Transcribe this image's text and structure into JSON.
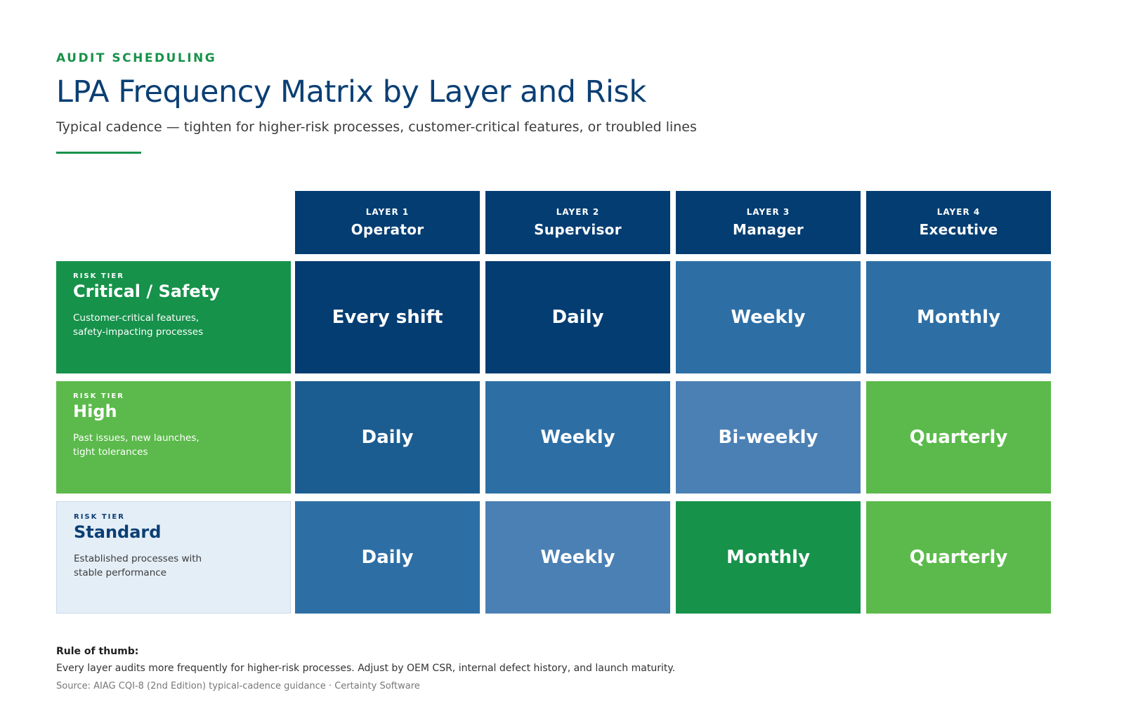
{
  "header": {
    "eyebrow": "AUDIT SCHEDULING",
    "title": "LPA Frequency Matrix by Layer and Risk",
    "subtitle": "Typical cadence — tighten for higher-risk processes, customer-critical features, or troubled lines"
  },
  "columns": [
    {
      "layer": "LAYER 1",
      "role": "Operator"
    },
    {
      "layer": "LAYER 2",
      "role": "Supervisor"
    },
    {
      "layer": "LAYER 3",
      "role": "Manager"
    },
    {
      "layer": "LAYER 4",
      "role": "Executive"
    }
  ],
  "rows": [
    {
      "tier_label": "RISK TIER",
      "tier_name": "Critical / Safety",
      "description": "Customer-critical features, safety-impacting processes",
      "color": "#16924a",
      "cells": [
        {
          "value": "Every shift",
          "color": "#033d72"
        },
        {
          "value": "Daily",
          "color": "#033d72"
        },
        {
          "value": "Weekly",
          "color": "#2d6fa5"
        },
        {
          "value": "Monthly",
          "color": "#2d6fa5"
        }
      ]
    },
    {
      "tier_label": "RISK TIER",
      "tier_name": "High",
      "description": "Past issues, new launches, tight tolerances",
      "color": "#5bba4b",
      "cells": [
        {
          "value": "Daily",
          "color": "#1c5d91"
        },
        {
          "value": "Weekly",
          "color": "#2d6fa5"
        },
        {
          "value": "Bi-weekly",
          "color": "#4b80b4"
        },
        {
          "value": "Quarterly",
          "color": "#5bba4b"
        }
      ]
    },
    {
      "tier_label": "RISK TIER",
      "tier_name": "Standard",
      "description": "Established processes with stable performance",
      "color": "#e4eef7",
      "cells": [
        {
          "value": "Daily",
          "color": "#2d6fa5"
        },
        {
          "value": "Weekly",
          "color": "#4b80b4"
        },
        {
          "value": "Monthly",
          "color": "#16924a"
        },
        {
          "value": "Quarterly",
          "color": "#5bba4b"
        }
      ]
    }
  ],
  "footer": {
    "rule_heading": "Rule of thumb:",
    "rule_text": "Every layer audits more frequently for higher-risk processes. Adjust by OEM CSR, internal defect history, and launch maturity.",
    "source": "Source: AIAG CQI-8 (2nd Edition) typical-cadence guidance · Certainty Software"
  }
}
